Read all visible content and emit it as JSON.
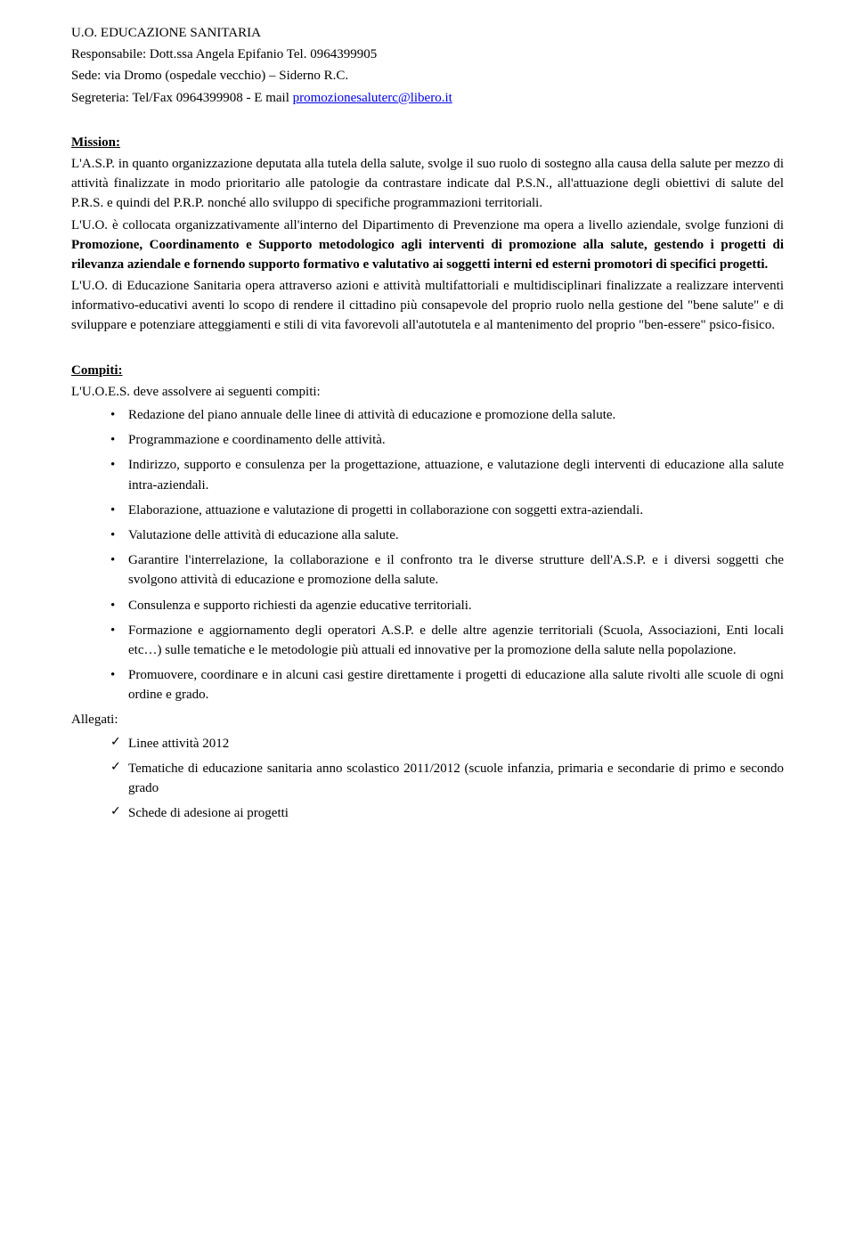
{
  "header": {
    "org_unit": "U.O.  EDUCAZIONE  SANITARIA",
    "responsabile_label": "Responsabile: Dott.ssa Angela Epifanio    Tel. 0964399905",
    "sede": "Sede: via Dromo (ospedale vecchio) – Siderno R.C.",
    "segreteria_prefix": "Segreteria: Tel/Fax  0964399908  -  E mail  ",
    "segreteria_email": "promozionesaluterc@libero.it"
  },
  "mission": {
    "heading": "Mission:",
    "p1": "L'A.S.P. in quanto organizzazione deputata alla tutela della salute, svolge il suo ruolo di sostegno alla causa della salute per mezzo di attività finalizzate in modo prioritario alle patologie da contrastare indicate dal P.S.N., all'attuazione degli obiettivi di salute del P.R.S. e quindi del P.R.P. nonché allo sviluppo di specifiche programmazioni territoriali.",
    "p2_pre": "L'U.O. è collocata organizzativamente all'interno del Dipartimento di Prevenzione ma opera a livello aziendale, svolge funzioni di ",
    "p2_bold": "Promozione, Coordinamento e Supporto metodologico agli interventi di promozione alla salute, gestendo i progetti di rilevanza aziendale e fornendo supporto formativo e valutativo ai soggetti interni ed esterni promotori di specifici progetti.",
    "p3": "L'U.O. di Educazione Sanitaria opera attraverso azioni e attività multifattoriali e multidisciplinari finalizzate a realizzare interventi informativo-educativi aventi lo scopo di rendere il cittadino più consapevole del proprio ruolo nella gestione del \"bene salute\" e di sviluppare e potenziare atteggiamenti e stili di vita favorevoli all'autotutela e al mantenimento del proprio \"ben-essere\" psico-fisico."
  },
  "compiti": {
    "heading": "Compiti:",
    "intro": "L'U.O.E.S. deve assolvere ai seguenti compiti:",
    "items": [
      "Redazione del piano annuale delle linee di  attività di educazione e promozione della salute.",
      "Programmazione e coordinamento delle attività.",
      "Indirizzo, supporto e consulenza per la progettazione, attuazione, e valutazione degli interventi di educazione alla salute intra-aziendali.",
      "Elaborazione, attuazione e valutazione di progetti in collaborazione con  soggetti extra-aziendali.",
      "Valutazione delle attività di educazione alla salute.",
      "Garantire l'interrelazione, la collaborazione e il confronto tra le diverse strutture dell'A.S.P. e i diversi soggetti che svolgono attività di educazione e promozione della salute.",
      "Consulenza e supporto richiesti da agenzie educative territoriali.",
      "Formazione e aggiornamento degli operatori A.S.P. e delle altre agenzie territoriali (Scuola, Associazioni, Enti locali etc…) sulle tematiche e le metodologie più attuali ed innovative per la promozione della salute nella popolazione.",
      "Promuovere, coordinare e in alcuni casi gestire direttamente i progetti di educazione alla salute rivolti alle scuole di ogni ordine e grado."
    ]
  },
  "allegati": {
    "heading": "Allegati:",
    "items": [
      "Linee attività 2012",
      "Tematiche di educazione sanitaria anno scolastico 2011/2012 (scuole infanzia, primaria e secondarie di primo e secondo grado",
      "Schede di adesione ai progetti"
    ]
  }
}
